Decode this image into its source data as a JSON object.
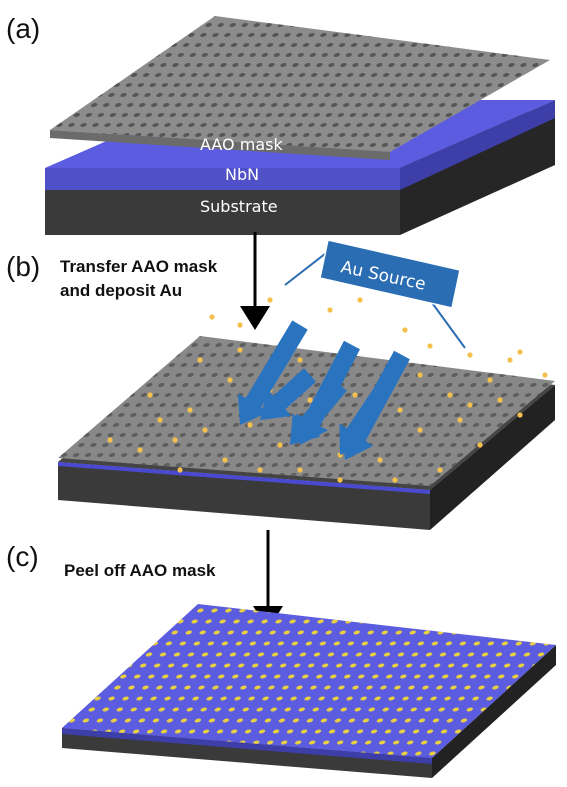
{
  "panels": {
    "a": {
      "label": "(a)"
    },
    "b": {
      "label": "(b)",
      "step_line1": "Transfer AAO mask",
      "step_line2": "and deposit Au"
    },
    "c": {
      "label": "(c)",
      "step": "Peel off AAO mask"
    }
  },
  "layers": {
    "mask": "AAO mask",
    "film": "NbN",
    "substrate": "Substrate"
  },
  "source_label": "Au Source",
  "colors": {
    "mask_top": "#8c8c8c",
    "mask_side": "#6b6b6b",
    "nbn_top": "#5c5ce0",
    "nbn_side": "#3e3ea8",
    "substrate_top": "#4a4a4a",
    "substrate_side": "#2f2f2f",
    "au_dot": "#f4c04e",
    "arrow_blue": "#2a73bf",
    "source_box": "#2a6db3",
    "black": "#000000"
  }
}
